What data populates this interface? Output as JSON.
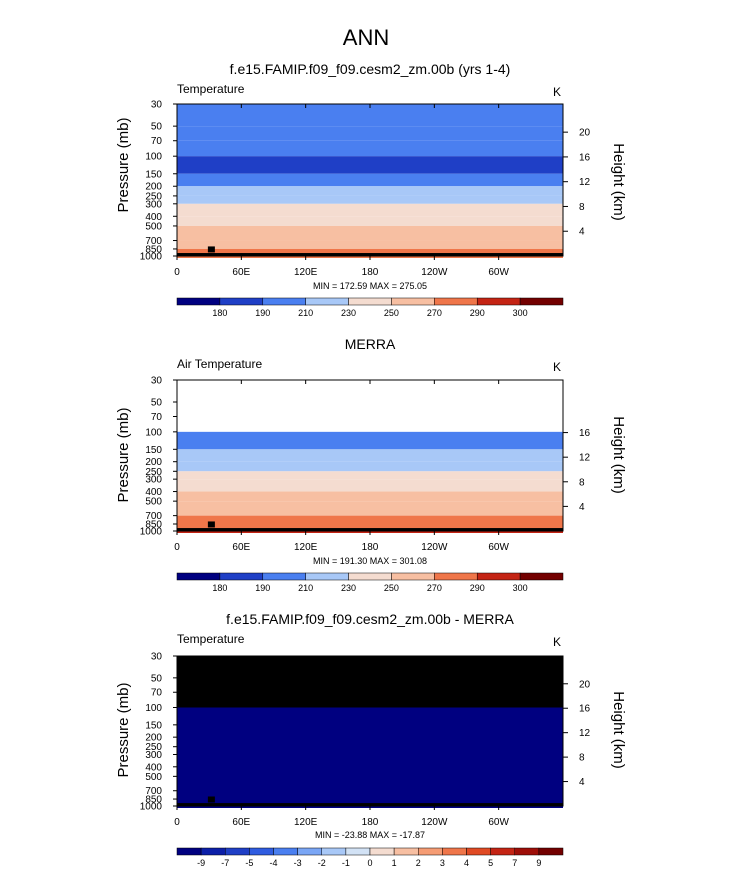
{
  "page_title": "ANN",
  "chart_data": [
    {
      "type": "heatmap",
      "title": "f.e15.FAMIP.f09_f09.cesm2_zm.00b (yrs 1-4)",
      "left_label": "Temperature",
      "units": "K",
      "ylabel": "Pressure (mb)",
      "ylabel_right": "Height (km)",
      "stats": "MIN = 172.59  MAX = 275.05",
      "pressure_ticks": [
        "30",
        "50",
        "70",
        "100",
        "150",
        "200",
        "250",
        "300",
        "400",
        "500",
        "700",
        "850",
        "1000"
      ],
      "height_ticks": [
        "20",
        "16",
        "12",
        "8",
        "4"
      ],
      "x_ticks": [
        "0",
        "60E",
        "120E",
        "180",
        "120W",
        "60W"
      ],
      "colorbar_labels": [
        "180",
        "190",
        "210",
        "230",
        "250",
        "270",
        "290",
        "300"
      ],
      "colorbar_colors": [
        "#000080",
        "#0c1fa8",
        "#1f3fc6",
        "#2f5ce0",
        "#4a7ff0",
        "#7aa6f5",
        "#a8c8f7",
        "#d2e2f5",
        "#f4dcd0",
        "#f7bfa2",
        "#f59c74",
        "#ef764a",
        "#e04a24",
        "#c42414",
        "#9e0e08",
        "#730000"
      ],
      "levels": [
        {
          "p": "30",
          "value": 205
        },
        {
          "p": "50",
          "value": 200
        },
        {
          "p": "70",
          "value": 195
        },
        {
          "p": "100",
          "value": 180
        },
        {
          "p": "150",
          "value": 205
        },
        {
          "p": "200",
          "value": 215
        },
        {
          "p": "250",
          "value": 225
        },
        {
          "p": "300",
          "value": 232
        },
        {
          "p": "400",
          "value": 245
        },
        {
          "p": "500",
          "value": 255
        },
        {
          "p": "700",
          "value": 262
        },
        {
          "p": "850",
          "value": 270
        },
        {
          "p": "1000",
          "value": 272
        }
      ]
    },
    {
      "type": "heatmap",
      "title": "MERRA",
      "left_label": "Air Temperature",
      "units": "K",
      "ylabel": "Pressure (mb)",
      "ylabel_right": "Height (km)",
      "stats": "MIN = 191.30  MAX = 301.08",
      "pressure_ticks": [
        "30",
        "50",
        "70",
        "100",
        "150",
        "200",
        "250",
        "300",
        "400",
        "500",
        "700",
        "850",
        "1000"
      ],
      "height_ticks": [
        "16",
        "12",
        "8",
        "4"
      ],
      "x_ticks": [
        "0",
        "60E",
        "120E",
        "180",
        "120W",
        "60W"
      ],
      "colorbar_labels": [
        "180",
        "190",
        "210",
        "230",
        "250",
        "270",
        "290",
        "300"
      ],
      "colorbar_colors": [
        "#000080",
        "#0c1fa8",
        "#1f3fc6",
        "#2f5ce0",
        "#4a7ff0",
        "#7aa6f5",
        "#a8c8f7",
        "#d2e2f5",
        "#f4dcd0",
        "#f7bfa2",
        "#f59c74",
        "#ef764a",
        "#e04a24",
        "#c42414",
        "#9e0e08",
        "#730000"
      ],
      "levels": [
        {
          "p": "100",
          "value": 205
        },
        {
          "p": "150",
          "value": 215
        },
        {
          "p": "200",
          "value": 222
        },
        {
          "p": "250",
          "value": 230
        },
        {
          "p": "300",
          "value": 240
        },
        {
          "p": "400",
          "value": 252
        },
        {
          "p": "500",
          "value": 262
        },
        {
          "p": "700",
          "value": 275
        },
        {
          "p": "850",
          "value": 288
        },
        {
          "p": "1000",
          "value": 295
        }
      ]
    },
    {
      "type": "heatmap",
      "title": "f.e15.FAMIP.f09_f09.cesm2_zm.00b - MERRA",
      "left_label": "Temperature",
      "units": "K",
      "ylabel": "Pressure (mb)",
      "ylabel_right": "Height (km)",
      "stats": "MIN = -23.88  MAX = -17.87",
      "pressure_ticks": [
        "30",
        "50",
        "70",
        "100",
        "150",
        "200",
        "250",
        "300",
        "400",
        "500",
        "700",
        "850",
        "1000"
      ],
      "height_ticks": [
        "20",
        "16",
        "12",
        "8",
        "4"
      ],
      "x_ticks": [
        "0",
        "60E",
        "120E",
        "180",
        "120W",
        "60W"
      ],
      "colorbar_labels": [
        "-9",
        "-7",
        "-5",
        "-4",
        "-3",
        "-2",
        "-1",
        "0",
        "1",
        "2",
        "3",
        "4",
        "5",
        "7",
        "9"
      ],
      "colorbar_colors": [
        "#000080",
        "#0c1fa8",
        "#1f3fc6",
        "#2f5ce0",
        "#4a7ff0",
        "#7aa6f5",
        "#a8c8f7",
        "#d2e2f5",
        "#f4dcd0",
        "#f7bfa2",
        "#f59c74",
        "#ef764a",
        "#e04a24",
        "#c42414",
        "#9e0e08",
        "#730000"
      ],
      "levels": [
        {
          "p": "100",
          "value": -20
        },
        {
          "p": "1000",
          "value": -20
        }
      ]
    }
  ]
}
